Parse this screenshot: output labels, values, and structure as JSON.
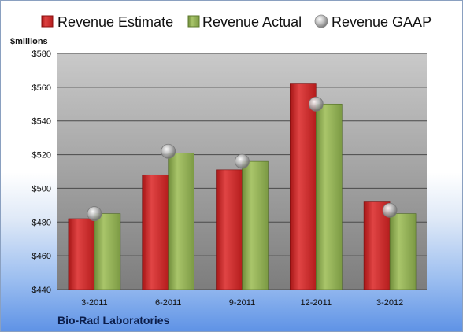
{
  "chart_data": {
    "type": "bar",
    "categories": [
      "3-2011",
      "6-2011",
      "9-2011",
      "12-2011",
      "3-2012"
    ],
    "series": [
      {
        "name": "Revenue Estimate",
        "values": [
          482,
          508,
          511,
          562,
          492
        ]
      },
      {
        "name": "Revenue Actual",
        "values": [
          485,
          521,
          516,
          550,
          485
        ]
      },
      {
        "name": "Revenue GAAP",
        "values": [
          485,
          522,
          516,
          550,
          487
        ]
      }
    ],
    "ylabel": "$millions",
    "ylim": [
      440,
      580
    ],
    "yticks": [
      440,
      460,
      480,
      500,
      520,
      540,
      560,
      580
    ],
    "ytick_labels": [
      "$440",
      "$460",
      "$480",
      "$500",
      "$520",
      "$540",
      "$560",
      "$580"
    ],
    "grid": true,
    "legend_position": "top",
    "caption": "Bio-Rad Laboratories"
  },
  "colors": {
    "estimate": "#d42a2a",
    "actual": "#8fac52",
    "gaap": "#b0b0b0",
    "plot_top": "#c9c9c9",
    "plot_bottom": "#7d7d7d"
  },
  "icons": {
    "estimate": "red-square-icon",
    "actual": "green-square-icon",
    "gaap": "gray-sphere-icon"
  }
}
